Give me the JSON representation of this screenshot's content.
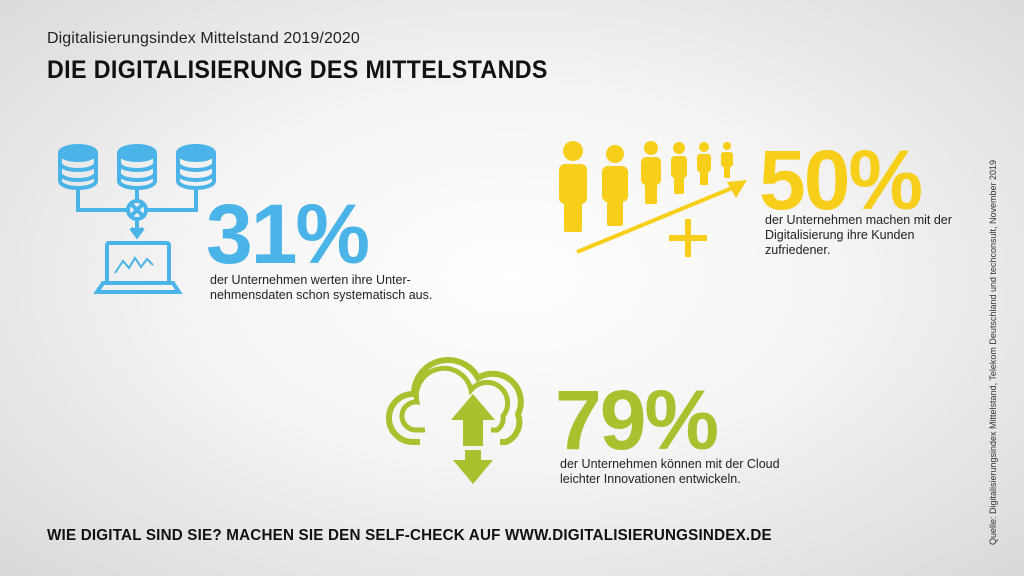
{
  "header": {
    "subtitle": "Digitalisierungsindex Mittelstand 2019/2020",
    "title": "DIE DIGITALISIERUNG DES MITTELSTANDS"
  },
  "stats": {
    "data": {
      "percent": "31%",
      "text": "der Unternehmen werten ihre Unter-nehmensdaten schon systematisch aus.",
      "color": "#4ab3e8",
      "icon": "database-laptop-icon"
    },
    "customers": {
      "percent": "50%",
      "text": "der Unternehmen machen mit der Digitalisierung ihre Kunden zufriedener.",
      "color": "#f7cf1b",
      "icon": "people-growth-icon"
    },
    "cloud": {
      "percent": "79%",
      "text": "der Unternehmen können mit der Cloud leichter Innovationen entwickeln.",
      "color": "#a9c02f",
      "icon": "cloud-upload-download-icon"
    }
  },
  "footer": {
    "cta": "WIE DIGITAL SIND SIE? MACHEN SIE DEN SELF-CHECK AUF WWW.DIGITALISIERUNGSINDEX.DE",
    "source": "Quelle: Digitalisierungsindex Mittelstand, Telekom Deutschland und techconsult, November 2019"
  }
}
